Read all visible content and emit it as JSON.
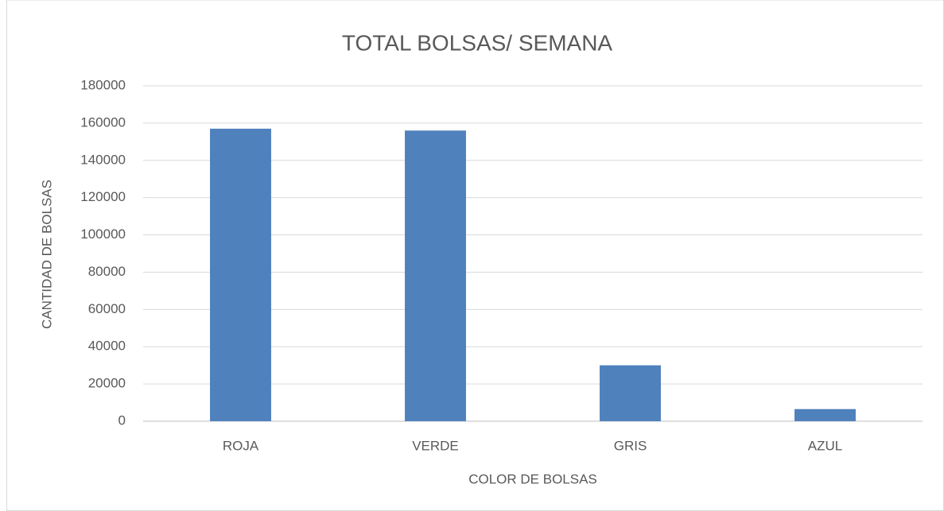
{
  "chart_data": {
    "type": "bar",
    "title": "TOTAL BOLSAS/ SEMANA",
    "x_label": "COLOR DE BOLSAS",
    "y_label": "CANTIDAD DE BOLSAS",
    "categories": [
      "ROJA",
      "VERDE",
      "GRIS",
      "AZUL"
    ],
    "values": [
      157000,
      156000,
      30000,
      6500
    ],
    "color": "#4f81bd",
    "ylim": [
      0,
      180000
    ],
    "yticks": [
      0,
      20000,
      40000,
      60000,
      80000,
      100000,
      120000,
      140000,
      160000,
      180000
    ],
    "grid": true
  }
}
